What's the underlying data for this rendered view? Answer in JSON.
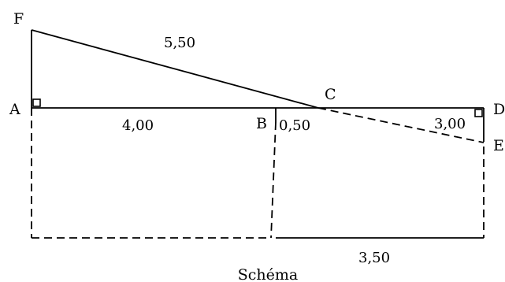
{
  "points": {
    "A": "A",
    "B": "B",
    "C": "C",
    "D": "D",
    "E": "E",
    "F": "F"
  },
  "lengths": {
    "FC": "5,50",
    "AB": "4,00",
    "BC": "0,50",
    "CE": "3,00",
    "bottom": "3,50"
  },
  "caption": "Schéma"
}
